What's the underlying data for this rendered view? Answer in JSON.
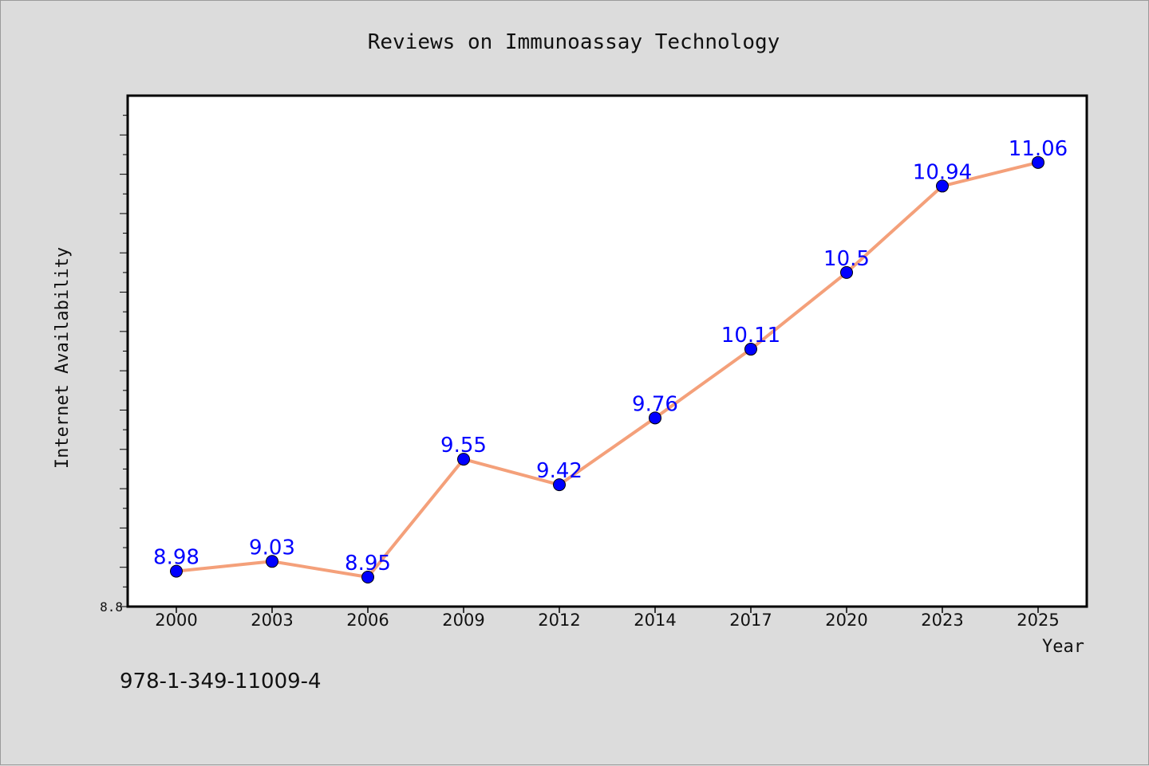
{
  "chart_data": {
    "type": "line",
    "title": "Reviews on Immunoassay Technology",
    "xlabel": "Year",
    "ylabel": "Internet Availability",
    "categories": [
      "2000",
      "2003",
      "2006",
      "2009",
      "2012",
      "2014",
      "2017",
      "2020",
      "2023",
      "2025"
    ],
    "series": [
      {
        "values": [
          8.98,
          9.03,
          8.95,
          9.55,
          9.42,
          9.76,
          10.11,
          10.5,
          10.94,
          11.06
        ],
        "labels": [
          "8.98",
          "9.03",
          "8.95",
          "9.55",
          "9.42",
          "9.76",
          "10.11",
          "10.5",
          "10.94",
          "11.06"
        ],
        "line_color": "#f4a07a",
        "marker_color": "#0000ff"
      }
    ],
    "ylim": [
      8.8,
      11.4
    ],
    "y_tick_labels": [
      "8.8"
    ],
    "grid": false,
    "footnote": "978-1-349-11009-4",
    "colors": {
      "background": "#dcdcdc",
      "plot_background": "#ffffff",
      "data_label": "#0000ff"
    }
  }
}
